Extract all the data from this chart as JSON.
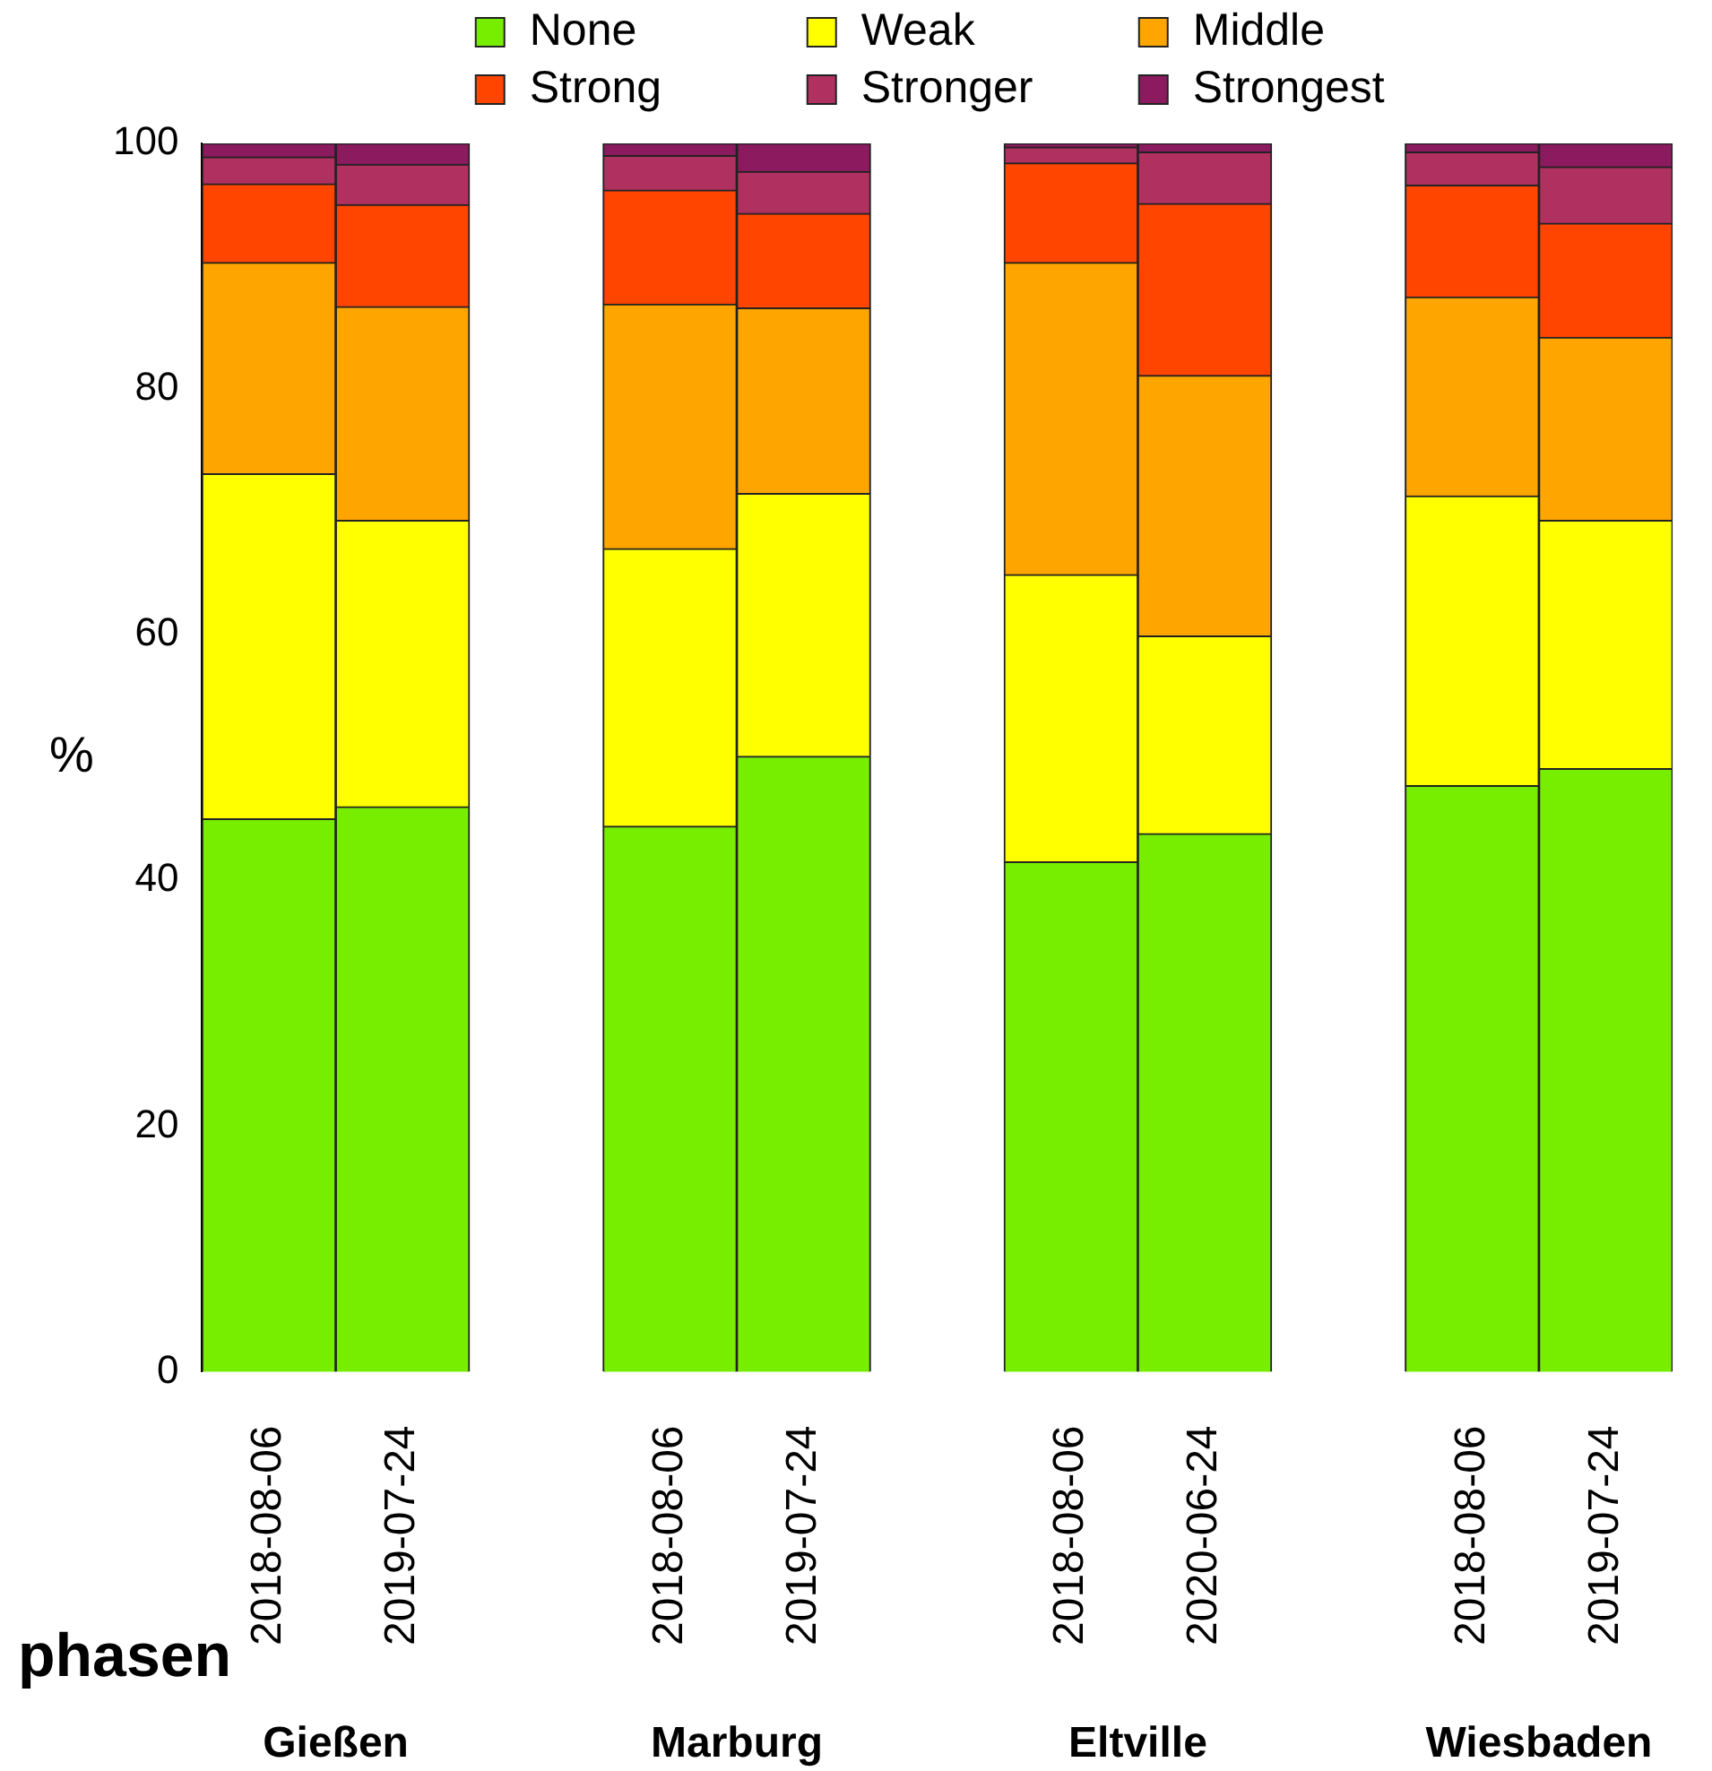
{
  "chart_data": {
    "type": "bar",
    "stacked": true,
    "ylabel": "%",
    "categories": [
      "2018-08-06",
      "2019-07-24",
      null,
      "2018-08-06",
      "2019-07-24",
      null,
      "2018-08-06",
      "2020-06-24",
      null,
      "2018-08-06",
      "2019-07-24"
    ],
    "series": [
      {
        "name": "None",
        "color": "#77ee00",
        "values": [
          45.0,
          46.0,
          null,
          44.4,
          50.1,
          null,
          41.5,
          43.8,
          null,
          47.7,
          49.1
        ]
      },
      {
        "name": "Weak",
        "color": "#ffff00",
        "values": [
          28.1,
          23.3,
          null,
          22.6,
          21.4,
          null,
          23.4,
          16.1,
          null,
          23.6,
          20.2
        ]
      },
      {
        "name": "Middle",
        "color": "#ffa500",
        "values": [
          17.2,
          17.4,
          null,
          19.9,
          15.1,
          null,
          25.4,
          21.2,
          null,
          16.2,
          14.9
        ]
      },
      {
        "name": "Strong",
        "color": "#ff4500",
        "values": [
          6.4,
          8.3,
          null,
          9.3,
          7.7,
          null,
          8.1,
          14.0,
          null,
          9.1,
          9.3
        ]
      },
      {
        "name": "Stronger",
        "color": "#b03060",
        "values": [
          2.2,
          3.3,
          null,
          2.8,
          3.4,
          null,
          1.3,
          4.2,
          null,
          2.7,
          4.6
        ]
      },
      {
        "name": "Strongest",
        "color": "#8b1a5e",
        "values": [
          1.1,
          1.7,
          null,
          1.0,
          2.3,
          null,
          0.3,
          0.7,
          null,
          0.7,
          1.9
        ]
      }
    ],
    "ylim": [
      0,
      100
    ],
    "yticks": [
      0,
      20,
      40,
      60,
      80,
      100
    ],
    "grid": false,
    "legend": "top",
    "annotations": [
      "Gießen",
      "Marburg",
      "Eltville",
      "Wiesbaden",
      "phasen"
    ]
  }
}
